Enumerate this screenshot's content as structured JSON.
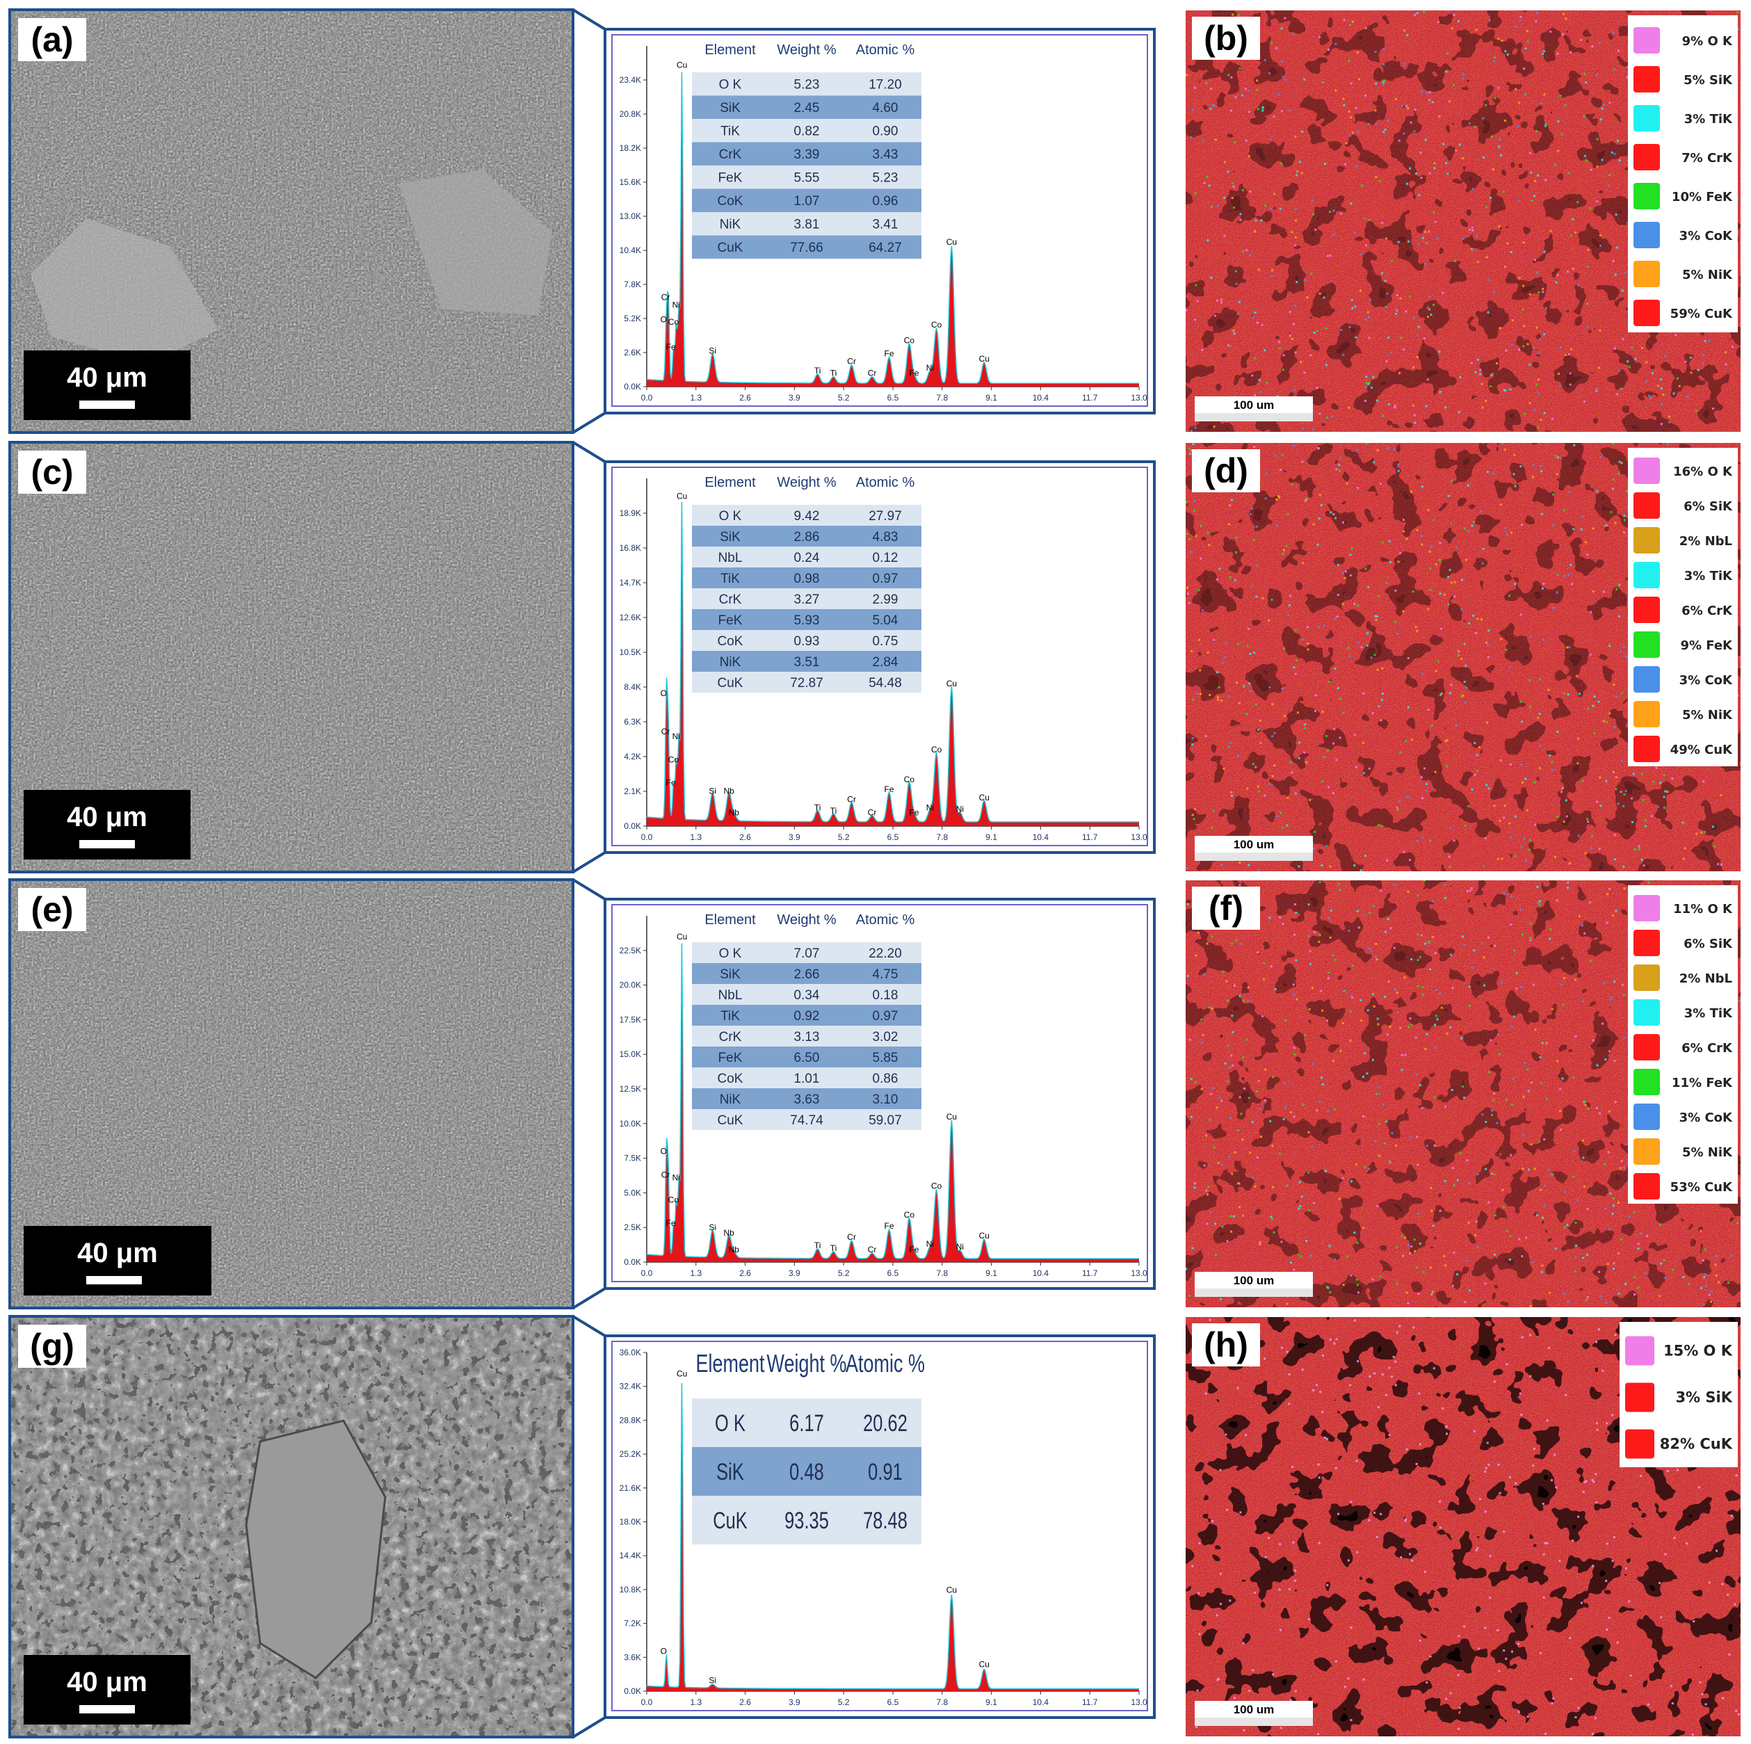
{
  "panels": [
    {
      "sem_letter": "(a)",
      "map_letter": "(b)",
      "scale_label": "40 μm",
      "map_scale_label": "100 um",
      "eds": {
        "headers": [
          "Element",
          "Weight %",
          "Atomic %"
        ],
        "rows": [
          [
            "O K",
            "5.23",
            "17.20"
          ],
          [
            "SiK",
            "2.45",
            "4.60"
          ],
          [
            "TiK",
            "0.82",
            "0.90"
          ],
          [
            "CrK",
            "3.39",
            "3.43"
          ],
          [
            "FeK",
            "5.55",
            "5.23"
          ],
          [
            "CoK",
            "1.07",
            "0.96"
          ],
          [
            "NiK",
            "3.81",
            "3.41"
          ],
          [
            "CuK",
            "77.66",
            "64.27"
          ]
        ]
      },
      "legend": [
        {
          "pct": "9%",
          "el": "O K",
          "color": "#f07ee8"
        },
        {
          "pct": "5%",
          "el": "SiK",
          "color": "#ff1a1a"
        },
        {
          "pct": "3%",
          "el": "TiK",
          "color": "#22f0f0"
        },
        {
          "pct": "7%",
          "el": "CrK",
          "color": "#ff1a1a"
        },
        {
          "pct": "10%",
          "el": "FeK",
          "color": "#22e022"
        },
        {
          "pct": "3%",
          "el": "CoK",
          "color": "#4a90e8"
        },
        {
          "pct": "5%",
          "el": "NiK",
          "color": "#ffa21a"
        },
        {
          "pct": "59%",
          "el": "CuK",
          "color": "#ff1a1a"
        }
      ]
    },
    {
      "sem_letter": "(c)",
      "map_letter": "(d)",
      "scale_label": "40 μm",
      "map_scale_label": "100 um",
      "eds": {
        "headers": [
          "Element",
          "Weight %",
          "Atomic %"
        ],
        "rows": [
          [
            "O K",
            "9.42",
            "27.97"
          ],
          [
            "SiK",
            "2.86",
            "4.83"
          ],
          [
            "NbL",
            "0.24",
            "0.12"
          ],
          [
            "TiK",
            "0.98",
            "0.97"
          ],
          [
            "CrK",
            "3.27",
            "2.99"
          ],
          [
            "FeK",
            "5.93",
            "5.04"
          ],
          [
            "CoK",
            "0.93",
            "0.75"
          ],
          [
            "NiK",
            "3.51",
            "2.84"
          ],
          [
            "CuK",
            "72.87",
            "54.48"
          ]
        ]
      },
      "legend": [
        {
          "pct": "16%",
          "el": "O K",
          "color": "#f07ee8"
        },
        {
          "pct": "6%",
          "el": "SiK",
          "color": "#ff1a1a"
        },
        {
          "pct": "2%",
          "el": "NbL",
          "color": "#d9a01a"
        },
        {
          "pct": "3%",
          "el": "TiK",
          "color": "#22f0f0"
        },
        {
          "pct": "6%",
          "el": "CrK",
          "color": "#ff1a1a"
        },
        {
          "pct": "9%",
          "el": "FeK",
          "color": "#22e022"
        },
        {
          "pct": "3%",
          "el": "CoK",
          "color": "#4a90e8"
        },
        {
          "pct": "5%",
          "el": "NiK",
          "color": "#ffa21a"
        },
        {
          "pct": "49%",
          "el": "CuK",
          "color": "#ff1a1a"
        }
      ]
    },
    {
      "sem_letter": "(e)",
      "map_letter": "(f)",
      "scale_label": "40 μm",
      "map_scale_label": "100 um",
      "eds": {
        "headers": [
          "Element",
          "Weight %",
          "Atomic %"
        ],
        "rows": [
          [
            "O K",
            "7.07",
            "22.20"
          ],
          [
            "SiK",
            "2.66",
            "4.75"
          ],
          [
            "NbL",
            "0.34",
            "0.18"
          ],
          [
            "TiK",
            "0.92",
            "0.97"
          ],
          [
            "CrK",
            "3.13",
            "3.02"
          ],
          [
            "FeK",
            "6.50",
            "5.85"
          ],
          [
            "CoK",
            "1.01",
            "0.86"
          ],
          [
            "NiK",
            "3.63",
            "3.10"
          ],
          [
            "CuK",
            "74.74",
            "59.07"
          ]
        ]
      },
      "legend": [
        {
          "pct": "11%",
          "el": "O K",
          "color": "#f07ee8"
        },
        {
          "pct": "6%",
          "el": "SiK",
          "color": "#ff1a1a"
        },
        {
          "pct": "2%",
          "el": "NbL",
          "color": "#d9a01a"
        },
        {
          "pct": "3%",
          "el": "TiK",
          "color": "#22f0f0"
        },
        {
          "pct": "6%",
          "el": "CrK",
          "color": "#ff1a1a"
        },
        {
          "pct": "11%",
          "el": "FeK",
          "color": "#22e022"
        },
        {
          "pct": "3%",
          "el": "CoK",
          "color": "#4a90e8"
        },
        {
          "pct": "5%",
          "el": "NiK",
          "color": "#ffa21a"
        },
        {
          "pct": "53%",
          "el": "CuK",
          "color": "#ff1a1a"
        }
      ]
    },
    {
      "sem_letter": "(g)",
      "map_letter": "(h)",
      "scale_label": "40 μm",
      "map_scale_label": "100 um",
      "eds": {
        "headers": [
          "Element",
          "Weight %",
          "Atomic %"
        ],
        "rows": [
          [
            "O K",
            "6.17",
            "20.62"
          ],
          [
            "SiK",
            "0.48",
            "0.91"
          ],
          [
            "CuK",
            "93.35",
            "78.48"
          ]
        ]
      },
      "legend": [
        {
          "pct": "15%",
          "el": "O K",
          "color": "#f07ee8"
        },
        {
          "pct": "3%",
          "el": "SiK",
          "color": "#ff1a1a"
        },
        {
          "pct": "82%",
          "el": "CuK",
          "color": "#ff1a1a"
        }
      ]
    }
  ],
  "chart_data": [
    {
      "type": "line",
      "x_ticks": [
        "0.0",
        "1.3",
        "2.6",
        "3.9",
        "5.2",
        "6.5",
        "7.8",
        "9.1",
        "10.4",
        "11.7",
        "13.0"
      ],
      "y_ticks": [
        "0.0K",
        "2.6K",
        "5.2K",
        "7.8K",
        "10.4K",
        "13.0K",
        "15.6K",
        "18.2K",
        "20.8K",
        "23.4K"
      ],
      "xlim": [
        0,
        13.0
      ],
      "ylim": [
        0,
        26000
      ],
      "peaks": [
        {
          "label": "O",
          "x": 0.52,
          "y": 4600
        },
        {
          "label": "Cr",
          "x": 0.57,
          "y": 6300
        },
        {
          "label": "Co",
          "x": 0.78,
          "y": 4400
        },
        {
          "label": "Fe",
          "x": 0.71,
          "y": 2500
        },
        {
          "label": "Ni",
          "x": 0.85,
          "y": 5700
        },
        {
          "label": "Cu",
          "x": 0.93,
          "y": 24000
        },
        {
          "label": "Si",
          "x": 1.74,
          "y": 2200
        },
        {
          "label": "Ti",
          "x": 4.51,
          "y": 700
        },
        {
          "label": "Ti",
          "x": 4.93,
          "y": 500
        },
        {
          "label": "Cr",
          "x": 5.41,
          "y": 1400
        },
        {
          "label": "Cr",
          "x": 5.95,
          "y": 500
        },
        {
          "label": "Fe",
          "x": 6.4,
          "y": 2000
        },
        {
          "label": "Co",
          "x": 6.93,
          "y": 3000
        },
        {
          "label": "Fe",
          "x": 7.06,
          "y": 500
        },
        {
          "label": "Ni",
          "x": 7.48,
          "y": 900
        },
        {
          "label": "Co",
          "x": 7.65,
          "y": 4200
        },
        {
          "label": "Cu",
          "x": 8.05,
          "y": 10500
        },
        {
          "label": "Cu",
          "x": 8.91,
          "y": 1600
        }
      ]
    },
    {
      "type": "line",
      "x_ticks": [
        "0.0",
        "1.3",
        "2.6",
        "3.9",
        "5.2",
        "6.5",
        "7.8",
        "9.1",
        "10.4",
        "11.7",
        "13.0"
      ],
      "y_ticks": [
        "0.0K",
        "2.1K",
        "4.2K",
        "6.3K",
        "8.4K",
        "10.5K",
        "12.6K",
        "14.7K",
        "16.8K",
        "18.9K"
      ],
      "xlim": [
        0,
        13.0
      ],
      "ylim": [
        0,
        21000
      ],
      "peaks": [
        {
          "label": "O",
          "x": 0.52,
          "y": 7600
        },
        {
          "label": "Cr",
          "x": 0.57,
          "y": 5300
        },
        {
          "label": "Co",
          "x": 0.78,
          "y": 3600
        },
        {
          "label": "Fe",
          "x": 0.71,
          "y": 2200
        },
        {
          "label": "Ni",
          "x": 0.85,
          "y": 5000
        },
        {
          "label": "Cu",
          "x": 0.93,
          "y": 19500
        },
        {
          "label": "Si",
          "x": 1.74,
          "y": 1700
        },
        {
          "label": "Nb",
          "x": 2.17,
          "y": 1700
        },
        {
          "label": "Nb",
          "x": 2.3,
          "y": 400
        },
        {
          "label": "Ti",
          "x": 4.51,
          "y": 700
        },
        {
          "label": "Ti",
          "x": 4.93,
          "y": 500
        },
        {
          "label": "Cr",
          "x": 5.41,
          "y": 1200
        },
        {
          "label": "Cr",
          "x": 5.95,
          "y": 400
        },
        {
          "label": "Fe",
          "x": 6.4,
          "y": 1800
        },
        {
          "label": "Co",
          "x": 6.93,
          "y": 2400
        },
        {
          "label": "Fe",
          "x": 7.06,
          "y": 400
        },
        {
          "label": "Ni",
          "x": 7.48,
          "y": 700
        },
        {
          "label": "Co",
          "x": 7.65,
          "y": 4200
        },
        {
          "label": "Cu",
          "x": 8.05,
          "y": 8200
        },
        {
          "label": "Cu",
          "x": 8.91,
          "y": 1300
        },
        {
          "label": "Ni",
          "x": 8.27,
          "y": 600
        }
      ]
    },
    {
      "type": "line",
      "x_ticks": [
        "0.0",
        "1.3",
        "2.6",
        "3.9",
        "5.2",
        "6.5",
        "7.8",
        "9.1",
        "10.4",
        "11.7",
        "13.0"
      ],
      "y_ticks": [
        "0.0K",
        "2.5K",
        "5.0K",
        "7.5K",
        "10.0K",
        "12.5K",
        "15.0K",
        "17.5K",
        "20.0K",
        "22.5K"
      ],
      "xlim": [
        0,
        13.0
      ],
      "ylim": [
        0,
        25000
      ],
      "peaks": [
        {
          "label": "O",
          "x": 0.52,
          "y": 7500
        },
        {
          "label": "Cr",
          "x": 0.57,
          "y": 5800
        },
        {
          "label": "Co",
          "x": 0.78,
          "y": 4000
        },
        {
          "label": "Fe",
          "x": 0.71,
          "y": 2300
        },
        {
          "label": "Ni",
          "x": 0.85,
          "y": 5600
        },
        {
          "label": "Cu",
          "x": 0.93,
          "y": 23000
        },
        {
          "label": "Si",
          "x": 1.74,
          "y": 2000
        },
        {
          "label": "Nb",
          "x": 2.17,
          "y": 1600
        },
        {
          "label": "Nb",
          "x": 2.3,
          "y": 400
        },
        {
          "label": "Ti",
          "x": 4.51,
          "y": 700
        },
        {
          "label": "Ti",
          "x": 4.93,
          "y": 500
        },
        {
          "label": "Cr",
          "x": 5.41,
          "y": 1300
        },
        {
          "label": "Cr",
          "x": 5.95,
          "y": 400
        },
        {
          "label": "Fe",
          "x": 6.4,
          "y": 2100
        },
        {
          "label": "Co",
          "x": 6.93,
          "y": 2900
        },
        {
          "label": "Fe",
          "x": 7.06,
          "y": 400
        },
        {
          "label": "Ni",
          "x": 7.48,
          "y": 800
        },
        {
          "label": "Co",
          "x": 7.65,
          "y": 5000
        },
        {
          "label": "Cu",
          "x": 8.05,
          "y": 10000
        },
        {
          "label": "Cu",
          "x": 8.91,
          "y": 1400
        },
        {
          "label": "Ni",
          "x": 8.27,
          "y": 600
        }
      ]
    },
    {
      "type": "line",
      "x_ticks": [
        "0.0",
        "1.3",
        "2.6",
        "3.9",
        "5.2",
        "6.5",
        "7.8",
        "9.1",
        "10.4",
        "11.7",
        "13.0"
      ],
      "y_ticks": [
        "0.0K",
        "3.6K",
        "7.2K",
        "10.8K",
        "14.4K",
        "18.0K",
        "21.6K",
        "25.2K",
        "28.8K",
        "32.4K",
        "36.0K"
      ],
      "xlim": [
        0,
        13.0
      ],
      "ylim": [
        0,
        36000
      ],
      "peaks": [
        {
          "label": "O",
          "x": 0.52,
          "y": 3500
        },
        {
          "label": "Cu",
          "x": 0.93,
          "y": 33000
        },
        {
          "label": "Si",
          "x": 1.74,
          "y": 400
        },
        {
          "label": "Cu",
          "x": 8.05,
          "y": 10000
        },
        {
          "label": "Cu",
          "x": 8.91,
          "y": 2100
        }
      ]
    }
  ]
}
